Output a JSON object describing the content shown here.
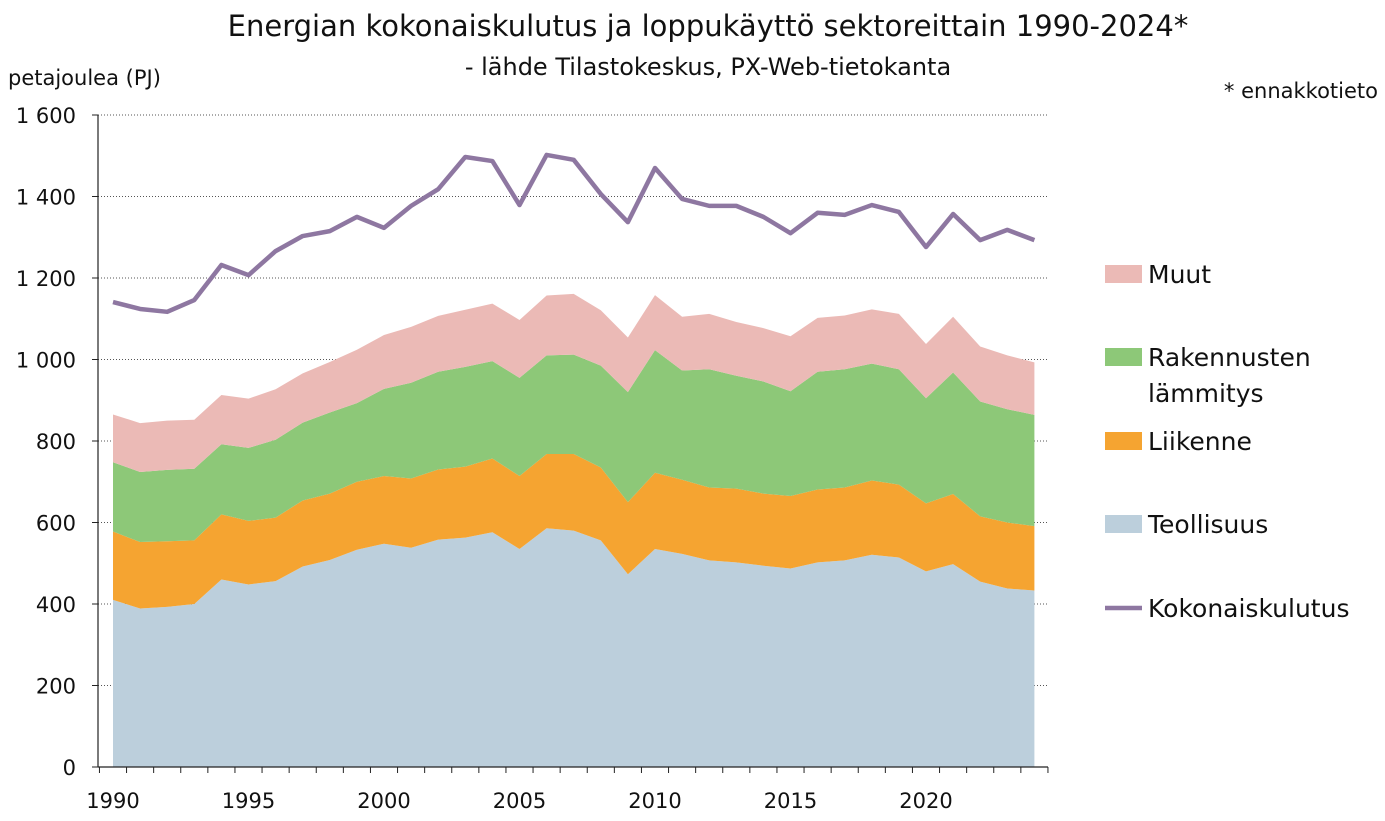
{
  "chart_data": {
    "type": "area",
    "stacked": true,
    "title": "Energian kokonaiskulutus ja loppukäyttö sektoreittain 1990-2024*",
    "subtitle": "- lähde Tilastokeskus, PX-Web-tietokanta",
    "note": "* ennakkotieto",
    "ylabel": "petajoulea (PJ)",
    "ylim": [
      0,
      1600
    ],
    "yticks": [
      0,
      200,
      400,
      600,
      800,
      1000,
      1200,
      1400,
      1600
    ],
    "ytick_labels": [
      "0",
      "200",
      "400",
      "600",
      "800",
      "1 000",
      "1 200",
      "1 400",
      "1 600"
    ],
    "xticks": [
      1990,
      1995,
      2000,
      2005,
      2010,
      2015,
      2020
    ],
    "xtick_labels": [
      "1990",
      "1995",
      "2000",
      "2005",
      "2010",
      "2015",
      "2020"
    ],
    "grid": true,
    "legend_position": "right",
    "x": [
      1990,
      1991,
      1992,
      1993,
      1994,
      1995,
      1996,
      1997,
      1998,
      1999,
      2000,
      2001,
      2002,
      2003,
      2004,
      2005,
      2006,
      2007,
      2008,
      2009,
      2010,
      2011,
      2012,
      2013,
      2014,
      2015,
      2016,
      2017,
      2018,
      2019,
      2020,
      2021,
      2022,
      2023,
      2024
    ],
    "series": [
      {
        "name": "Teollisuus",
        "color": "#bccfdc",
        "kind": "area",
        "values": [
          410,
          389,
          393,
          400,
          460,
          448,
          456,
          492,
          508,
          533,
          548,
          538,
          558,
          563,
          576,
          535,
          586,
          580,
          556,
          473,
          535,
          523,
          507,
          502,
          494,
          487,
          502,
          507,
          521,
          514,
          480,
          498,
          455,
          438,
          433
        ]
      },
      {
        "name": "Liikenne",
        "color": "#f5a431",
        "kind": "area",
        "values": [
          168,
          163,
          161,
          156,
          160,
          156,
          156,
          162,
          163,
          167,
          166,
          170,
          172,
          174,
          181,
          179,
          182,
          188,
          179,
          177,
          187,
          182,
          179,
          181,
          177,
          178,
          179,
          179,
          182,
          179,
          167,
          172,
          160,
          162,
          158
        ]
      },
      {
        "name": "Rakennusten lämmitys",
        "color": "#8dc878",
        "kind": "area",
        "values": [
          170,
          172,
          175,
          176,
          172,
          179,
          191,
          191,
          199,
          193,
          214,
          235,
          240,
          245,
          239,
          241,
          242,
          244,
          250,
          270,
          301,
          268,
          290,
          277,
          275,
          257,
          289,
          290,
          287,
          283,
          258,
          298,
          282,
          278,
          273
        ]
      },
      {
        "name": "Muut",
        "color": "#ebbab6",
        "kind": "area",
        "values": [
          117,
          120,
          121,
          120,
          121,
          121,
          124,
          121,
          124,
          131,
          132,
          137,
          137,
          140,
          141,
          142,
          147,
          149,
          136,
          134,
          135,
          132,
          136,
          132,
          131,
          135,
          132,
          132,
          133,
          136,
          133,
          137,
          135,
          132,
          129
        ]
      },
      {
        "name": "Kokonaiskulutus",
        "color": "#8e77a1",
        "kind": "line",
        "values": [
          1141,
          1124,
          1117,
          1146,
          1232,
          1207,
          1266,
          1303,
          1315,
          1350,
          1323,
          1377,
          1418,
          1497,
          1487,
          1379,
          1502,
          1490,
          1406,
          1337,
          1470,
          1394,
          1377,
          1377,
          1350,
          1310,
          1360,
          1355,
          1379,
          1362,
          1276,
          1357,
          1293,
          1318,
          1293
        ]
      }
    ],
    "legend": [
      {
        "lines": [
          "Muut"
        ],
        "color": "#ebbab6",
        "kind": "area"
      },
      {
        "lines": [
          "Rakennusten",
          "lämmitys"
        ],
        "color": "#8dc878",
        "kind": "area"
      },
      {
        "lines": [
          "Liikenne"
        ],
        "color": "#f5a431",
        "kind": "area"
      },
      {
        "lines": [
          "Teollisuus"
        ],
        "color": "#bccfdc",
        "kind": "area"
      },
      {
        "lines": [
          "Kokonaiskulutus"
        ],
        "color": "#8e77a1",
        "kind": "line"
      }
    ]
  }
}
